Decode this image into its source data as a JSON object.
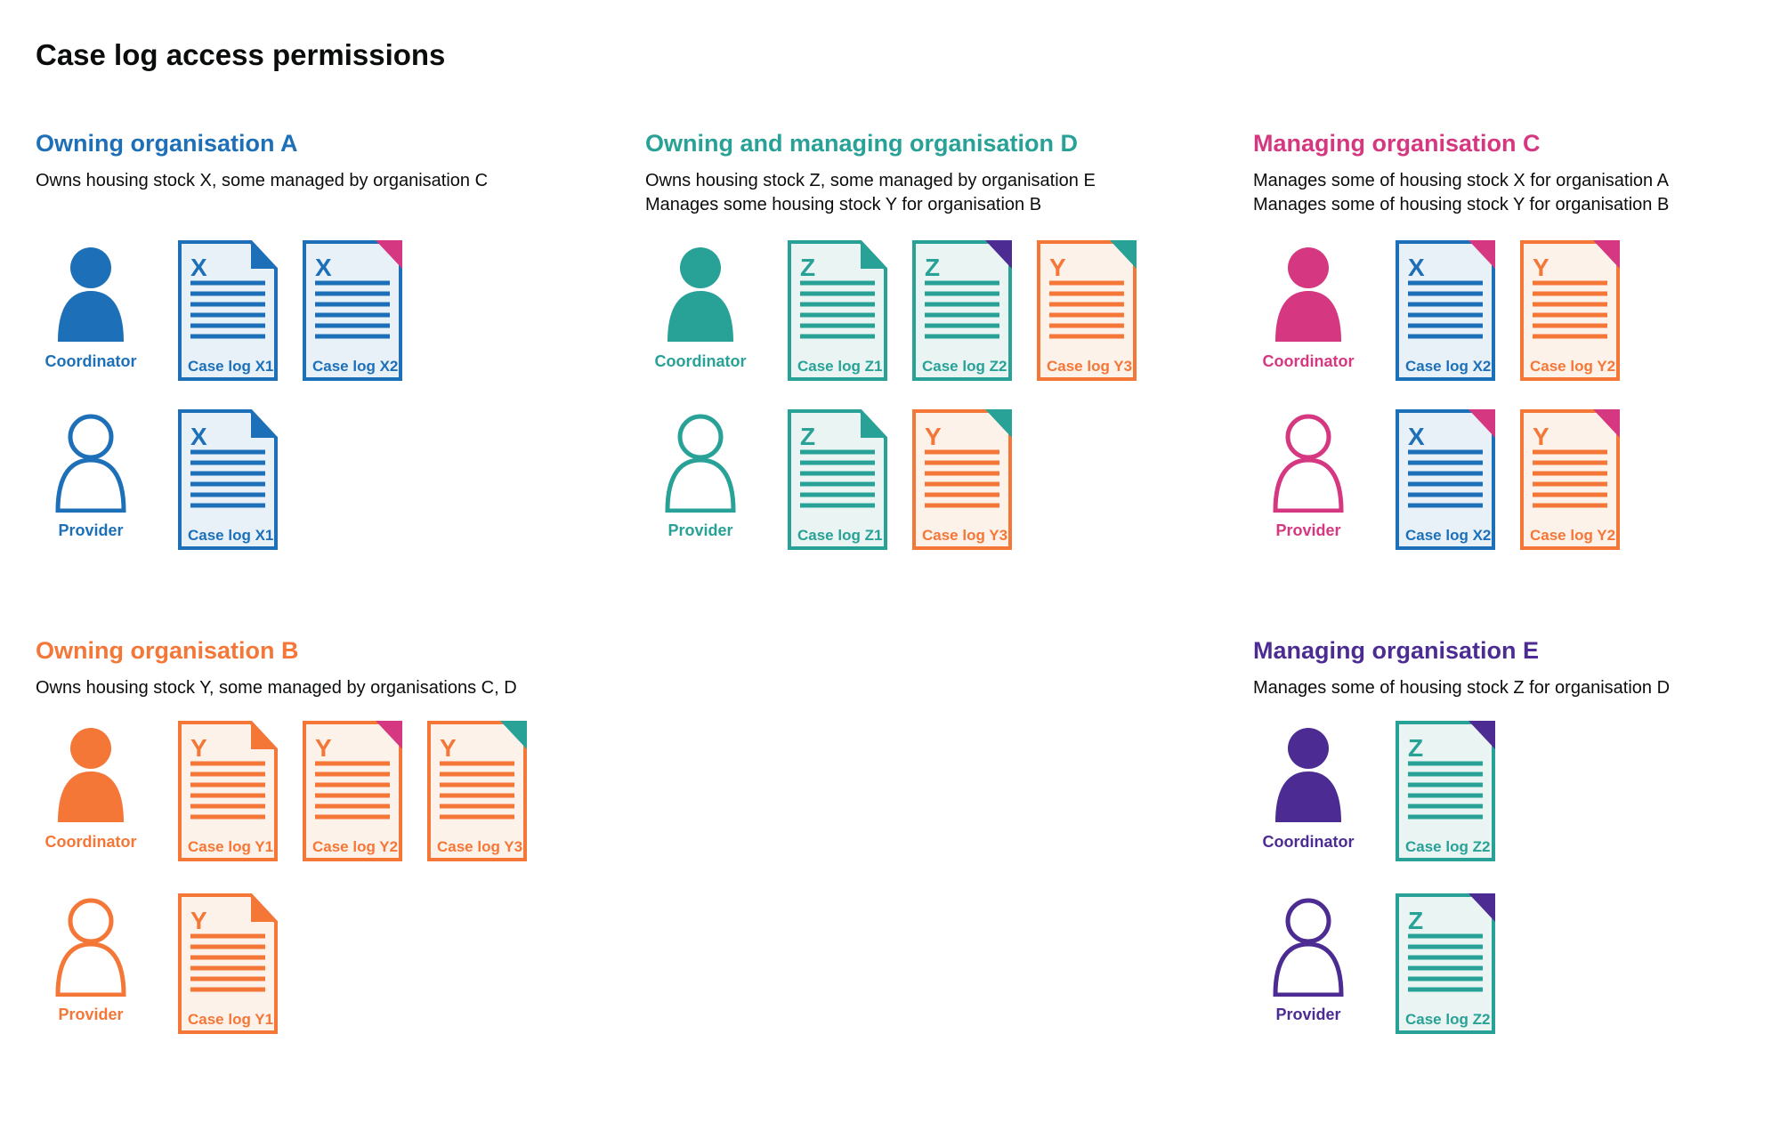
{
  "page": {
    "title": "Case log access permissions"
  },
  "colors": {
    "blue": "#1d70b8",
    "teal": "#28a197",
    "pink": "#d53880",
    "orange": "#f47738",
    "purple": "#4c2c92",
    "text": "#0b0c0c"
  },
  "tints": {
    "blue": "#e9f1f8",
    "teal": "#eaf5f3",
    "orange": "#fdf2e9"
  },
  "sections": [
    {
      "id": "owning-organisation-a",
      "slot": "a",
      "band": "row1",
      "heading": "Owning organisation A",
      "color": "blue",
      "description": [
        "Owns housing stock X, some managed by organisation C"
      ],
      "rows": [
        {
          "role": "Coordinator",
          "icon": "person-filled",
          "docs": [
            {
              "letter": "X",
              "label": "Case log X1",
              "color": "blue",
              "fold": "blue"
            },
            {
              "letter": "X",
              "label": "Case log X2",
              "color": "blue",
              "fold": "pink"
            }
          ]
        },
        {
          "role": "Provider",
          "icon": "person-outline",
          "docs": [
            {
              "letter": "X",
              "label": "Case log X1",
              "color": "blue",
              "fold": "blue"
            }
          ]
        }
      ]
    },
    {
      "id": "owning-and-managing-organisation-d",
      "slot": "d",
      "band": "row1",
      "heading": "Owning and managing organisation D",
      "color": "teal",
      "description": [
        "Owns housing stock Z, some managed by organisation E",
        "Manages some housing stock Y for organisation B"
      ],
      "rows": [
        {
          "role": "Coordinator",
          "icon": "person-filled",
          "docs": [
            {
              "letter": "Z",
              "label": "Case log Z1",
              "color": "teal",
              "fold": "teal"
            },
            {
              "letter": "Z",
              "label": "Case log Z2",
              "color": "teal",
              "fold": "purple"
            },
            {
              "letter": "Y",
              "label": "Case log Y3",
              "color": "orange",
              "fold": "teal"
            }
          ]
        },
        {
          "role": "Provider",
          "icon": "person-outline",
          "docs": [
            {
              "letter": "Z",
              "label": "Case log Z1",
              "color": "teal",
              "fold": "teal"
            },
            {
              "letter": "Y",
              "label": "Case log Y3",
              "color": "orange",
              "fold": "teal"
            }
          ]
        }
      ]
    },
    {
      "id": "managing-organisation-c",
      "slot": "c",
      "band": "row1",
      "heading": "Managing organisation C",
      "color": "pink",
      "description": [
        "Manages some of housing stock X for organisation A",
        "Manages some of housing stock Y for organisation B"
      ],
      "rows": [
        {
          "role": "Coordinator",
          "icon": "person-filled",
          "docs": [
            {
              "letter": "X",
              "label": "Case log X2",
              "color": "blue",
              "fold": "pink"
            },
            {
              "letter": "Y",
              "label": "Case log Y2",
              "color": "orange",
              "fold": "pink"
            }
          ]
        },
        {
          "role": "Provider",
          "icon": "person-outline",
          "docs": [
            {
              "letter": "X",
              "label": "Case log X2",
              "color": "blue",
              "fold": "pink"
            },
            {
              "letter": "Y",
              "label": "Case log Y2",
              "color": "orange",
              "fold": "pink"
            }
          ]
        }
      ]
    },
    {
      "id": "owning-organisation-b",
      "slot": "b",
      "band": "row2",
      "heading": "Owning organisation B",
      "color": "orange",
      "description": [
        "Owns housing stock Y, some managed by organisations C, D"
      ],
      "rows": [
        {
          "role": "Coordinator",
          "icon": "person-filled",
          "docs": [
            {
              "letter": "Y",
              "label": "Case log Y1",
              "color": "orange",
              "fold": "orange"
            },
            {
              "letter": "Y",
              "label": "Case log Y2",
              "color": "orange",
              "fold": "pink"
            },
            {
              "letter": "Y",
              "label": "Case log Y3",
              "color": "orange",
              "fold": "teal"
            }
          ]
        },
        {
          "role": "Provider",
          "icon": "person-outline",
          "docs": [
            {
              "letter": "Y",
              "label": "Case log Y1",
              "color": "orange",
              "fold": "orange"
            }
          ]
        }
      ]
    },
    {
      "id": "managing-organisation-e",
      "slot": "e",
      "band": "row2",
      "heading": "Managing organisation E",
      "color": "purple",
      "description": [
        "Manages some of housing stock Z for organisation D"
      ],
      "rows": [
        {
          "role": "Coordinator",
          "icon": "person-filled",
          "docs": [
            {
              "letter": "Z",
              "label": "Case log Z2",
              "color": "teal",
              "fold": "purple"
            }
          ]
        },
        {
          "role": "Provider",
          "icon": "person-outline",
          "docs": [
            {
              "letter": "Z",
              "label": "Case log Z2",
              "color": "teal",
              "fold": "purple"
            }
          ]
        }
      ]
    }
  ]
}
